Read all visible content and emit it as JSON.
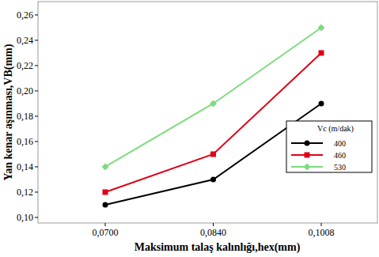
{
  "chart_data": {
    "type": "line",
    "x_label": "Maksimum talaş kalınlığı,hex(mm)",
    "y_label": "Yan kenar aşınması,VB(mm)",
    "legend_title": "Vc (m/dak)",
    "categories": [
      "0,0700",
      "0,0840",
      "0,1008"
    ],
    "series": [
      {
        "name": "400",
        "color": "#000000",
        "marker": "circle",
        "values": [
          0.11,
          0.13,
          0.19
        ]
      },
      {
        "name": "460",
        "color": "#e00016",
        "marker": "square",
        "values": [
          0.12,
          0.15,
          0.23
        ]
      },
      {
        "name": "530",
        "color": "#7ddc7c",
        "marker": "diamond",
        "values": [
          0.14,
          0.19,
          0.25
        ]
      }
    ],
    "ylim": [
      0.0956,
      0.2706
    ],
    "yticks": [
      {
        "value": 0.1,
        "label": "0,10"
      },
      {
        "value": 0.12,
        "label": "0,12"
      },
      {
        "value": 0.14,
        "label": "0,14"
      },
      {
        "value": 0.16,
        "label": "0,16"
      },
      {
        "value": 0.18,
        "label": "0,18"
      },
      {
        "value": 0.2,
        "label": "0,20"
      },
      {
        "value": 0.22,
        "label": "0,22"
      },
      {
        "value": 0.24,
        "label": "0,24"
      },
      {
        "value": 0.26,
        "label": "0,26"
      }
    ],
    "grid": false,
    "legend": "lower right"
  }
}
